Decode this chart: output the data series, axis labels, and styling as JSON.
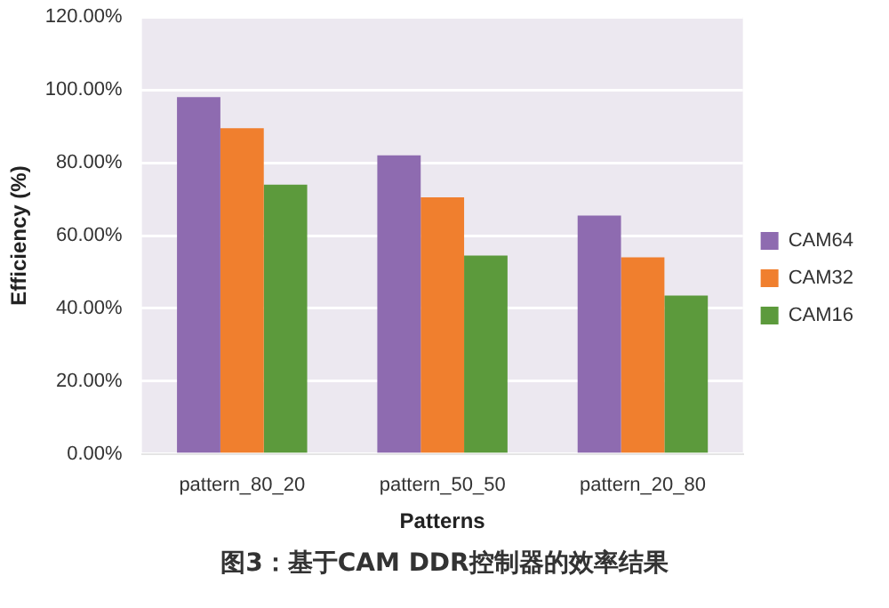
{
  "chart_data": {
    "type": "bar",
    "categories": [
      "pattern_80_20",
      "pattern_50_50",
      "pattern_20_80"
    ],
    "series": [
      {
        "name": "CAM64",
        "color": "#8e6bb0",
        "values": [
          98,
          82,
          65.5
        ]
      },
      {
        "name": "CAM32",
        "color": "#f07f2e",
        "values": [
          89.5,
          70.5,
          54
        ]
      },
      {
        "name": "CAM16",
        "color": "#5c9a3c",
        "values": [
          74,
          54.5,
          43.5
        ]
      }
    ],
    "xlabel": "Patterns",
    "ylabel": "Efficiency (%)",
    "ylim": [
      0,
      120
    ],
    "yticks": [
      {
        "value": 0,
        "label": "0.00%"
      },
      {
        "value": 20,
        "label": "20.00%"
      },
      {
        "value": 40,
        "label": "40.00%"
      },
      {
        "value": 60,
        "label": "60.00%"
      },
      {
        "value": 80,
        "label": "80.00%"
      },
      {
        "value": 100,
        "label": "100.00%"
      },
      {
        "value": 120,
        "label": "120.00%"
      }
    ],
    "grid": "y",
    "legend": "right",
    "annotations": [
      "图3：基于CAM DDR控制器的效率结果"
    ]
  }
}
